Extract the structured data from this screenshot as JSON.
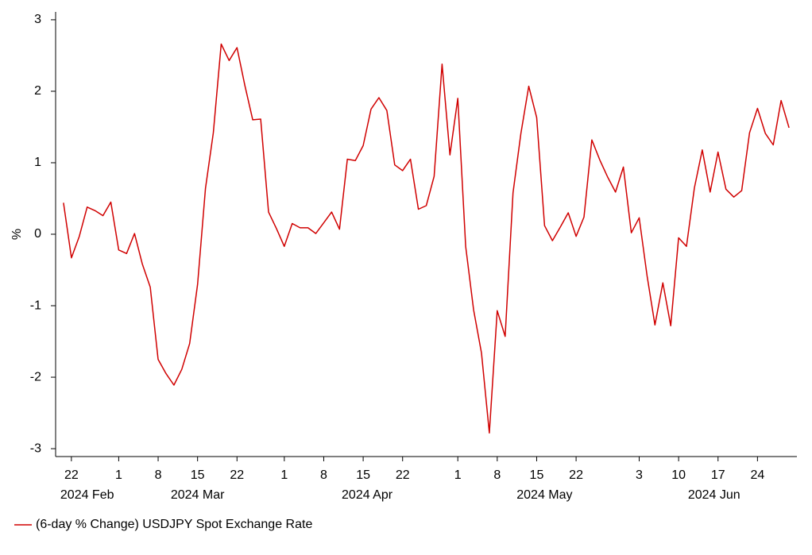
{
  "chart_data": {
    "type": "line",
    "ylabel": "%",
    "x": [
      "2024-02-21",
      "2024-02-22",
      "2024-02-23",
      "2024-02-26",
      "2024-02-27",
      "2024-02-28",
      "2024-02-29",
      "2024-03-01",
      "2024-03-04",
      "2024-03-05",
      "2024-03-06",
      "2024-03-07",
      "2024-03-08",
      "2024-03-11",
      "2024-03-12",
      "2024-03-13",
      "2024-03-14",
      "2024-03-15",
      "2024-03-18",
      "2024-03-19",
      "2024-03-20",
      "2024-03-21",
      "2024-03-22",
      "2024-03-25",
      "2024-03-26",
      "2024-03-27",
      "2024-03-28",
      "2024-03-29",
      "2024-04-01",
      "2024-04-02",
      "2024-04-03",
      "2024-04-04",
      "2024-04-05",
      "2024-04-08",
      "2024-04-09",
      "2024-04-10",
      "2024-04-11",
      "2024-04-12",
      "2024-04-15",
      "2024-04-16",
      "2024-04-17",
      "2024-04-18",
      "2024-04-19",
      "2024-04-22",
      "2024-04-23",
      "2024-04-24",
      "2024-04-25",
      "2024-04-26",
      "2024-04-29",
      "2024-04-30",
      "2024-05-01",
      "2024-05-02",
      "2024-05-03",
      "2024-05-06",
      "2024-05-07",
      "2024-05-08",
      "2024-05-09",
      "2024-05-10",
      "2024-05-13",
      "2024-05-14",
      "2024-05-15",
      "2024-05-16",
      "2024-05-17",
      "2024-05-20",
      "2024-05-21",
      "2024-05-22",
      "2024-05-23",
      "2024-05-24",
      "2024-05-27",
      "2024-05-28",
      "2024-05-29",
      "2024-05-30",
      "2024-05-31",
      "2024-06-03",
      "2024-06-04",
      "2024-06-05",
      "2024-06-06",
      "2024-06-07",
      "2024-06-10",
      "2024-06-11",
      "2024-06-12",
      "2024-06-13",
      "2024-06-14",
      "2024-06-17",
      "2024-06-18",
      "2024-06-19",
      "2024-06-20",
      "2024-06-21",
      "2024-06-24",
      "2024-06-25",
      "2024-06-26",
      "2024-06-27",
      "2024-06-28"
    ],
    "series": [
      {
        "name": "(6-day % Change) USDJPY Spot Exchange Rate",
        "color": "#d00000",
        "values": [
          0.44,
          -0.33,
          -0.03,
          0.38,
          0.33,
          0.26,
          0.45,
          -0.22,
          -0.27,
          0.01,
          -0.42,
          -0.74,
          -1.75,
          -1.95,
          -2.11,
          -1.89,
          -1.53,
          -0.7,
          0.64,
          1.42,
          2.66,
          2.43,
          2.61,
          2.08,
          1.6,
          1.61,
          0.31,
          0.08,
          -0.17,
          0.15,
          0.09,
          0.09,
          0.01,
          0.16,
          0.31,
          0.07,
          1.05,
          1.03,
          1.24,
          1.75,
          1.91,
          1.73,
          0.97,
          0.89,
          1.05,
          0.35,
          0.4,
          0.81,
          2.38,
          1.11,
          1.9,
          -0.17,
          -1.06,
          -1.66,
          -2.78,
          -1.07,
          -1.43,
          0.58,
          1.41,
          2.07,
          1.63,
          0.12,
          -0.09,
          0.1,
          0.3,
          -0.03,
          0.24,
          1.32,
          1.04,
          0.8,
          0.59,
          0.94,
          0.02,
          0.23,
          -0.58,
          -1.27,
          -0.68,
          -1.28,
          -0.05,
          -0.17,
          0.65,
          1.18,
          0.59,
          1.15,
          0.63,
          0.52,
          0.61,
          1.42,
          1.76,
          1.41,
          1.25,
          1.87,
          1.49
        ]
      }
    ],
    "xlim": [
      "2024-02-20",
      "2024-07-01"
    ],
    "xticks": [
      {
        "value": "2024-02-22",
        "label": "22"
      },
      {
        "value": "2024-03-01",
        "label": "1"
      },
      {
        "value": "2024-03-08",
        "label": "8"
      },
      {
        "value": "2024-03-15",
        "label": "15"
      },
      {
        "value": "2024-03-22",
        "label": "22"
      },
      {
        "value": "2024-04-01",
        "label": "1"
      },
      {
        "value": "2024-04-08",
        "label": "8"
      },
      {
        "value": "2024-04-15",
        "label": "15"
      },
      {
        "value": "2024-04-22",
        "label": "22"
      },
      {
        "value": "2024-05-01",
        "label": "1"
      },
      {
        "value": "2024-05-08",
        "label": "8"
      },
      {
        "value": "2024-05-15",
        "label": "15"
      },
      {
        "value": "2024-05-22",
        "label": "22"
      },
      {
        "value": "2024-06-03",
        "label": "3"
      },
      {
        "value": "2024-06-10",
        "label": "10"
      },
      {
        "value": "2024-06-17",
        "label": "17"
      },
      {
        "value": "2024-06-24",
        "label": "24"
      }
    ],
    "months": [
      {
        "value": "2024-02",
        "label": "2024 Feb"
      },
      {
        "value": "2024-03",
        "label": "2024 Mar"
      },
      {
        "value": "2024-04",
        "label": "2024 Apr"
      },
      {
        "value": "2024-05",
        "label": "2024 May"
      },
      {
        "value": "2024-06",
        "label": "2024 Jun"
      }
    ],
    "ylim": [
      -3.11,
      3.11
    ],
    "yticks": [
      -3,
      -2,
      -1,
      0,
      1,
      2,
      3
    ],
    "grid": false,
    "legend": "bottom-left"
  }
}
